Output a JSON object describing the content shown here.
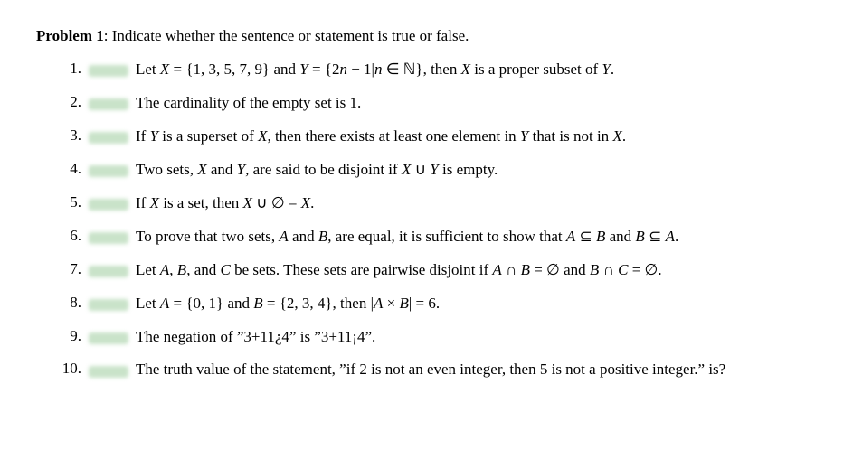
{
  "header": {
    "label": "Problem 1",
    "separator": ":",
    "text": "Indicate whether the sentence or statement is true or false."
  },
  "blank_color": "#c9e3c9",
  "items": [
    {
      "num": "1.",
      "html": "Let <span class='mi'>X</span> = {1, 3, 5, 7, 9} and <span class='mi'>Y</span> = {2<span class='mi'>n</span> − 1|<span class='mi'>n</span> ∈ <span class='bb'>ℕ</span>}, then <span class='mi'>X</span> is a proper subset of <span class='mi'>Y</span>."
    },
    {
      "num": "2.",
      "html": "The cardinality of the empty set is 1."
    },
    {
      "num": "3.",
      "html": "If <span class='mi'>Y</span> is a superset of <span class='mi'>X</span>, then there exists at least one element in <span class='mi'>Y</span> that is not in <span class='mi'>X</span>."
    },
    {
      "num": "4.",
      "html": "Two sets, <span class='mi'>X</span> and <span class='mi'>Y</span>, are said to be disjoint if <span class='mi'>X</span> ∪ <span class='mi'>Y</span> is empty."
    },
    {
      "num": "5.",
      "html": "If <span class='mi'>X</span> is a set, then <span class='mi'>X</span> ∪ ∅ = <span class='mi'>X</span>."
    },
    {
      "num": "6.",
      "html": "To prove that two sets, <span class='mi'>A</span> and <span class='mi'>B</span>, are equal, it is sufficient to show that <span class='mi'>A</span> ⊆ <span class='mi'>B</span> and <span class='mi'>B</span> ⊆ <span class='mi'>A</span>."
    },
    {
      "num": "7.",
      "html": "Let <span class='mi'>A</span>, <span class='mi'>B</span>, and <span class='mi'>C</span> be sets. These sets are pairwise disjoint if <span class='mi'>A</span> ∩ <span class='mi'>B</span> = ∅ and <span class='mi'>B</span> ∩ <span class='mi'>C</span> = ∅."
    },
    {
      "num": "8.",
      "html": "Let <span class='mi'>A</span> = {0, 1} and <span class='mi'>B</span> = {2, 3, 4}, then |<span class='mi'>A</span> × <span class='mi'>B</span>| = 6."
    },
    {
      "num": "9.",
      "html": "The negation of ”3+11¿4” is ”3+11¡4”."
    },
    {
      "num": "10.",
      "html": "The truth value of the statement, ”if 2 is not an even integer, then 5 is not a positive integer.” is?"
    }
  ]
}
